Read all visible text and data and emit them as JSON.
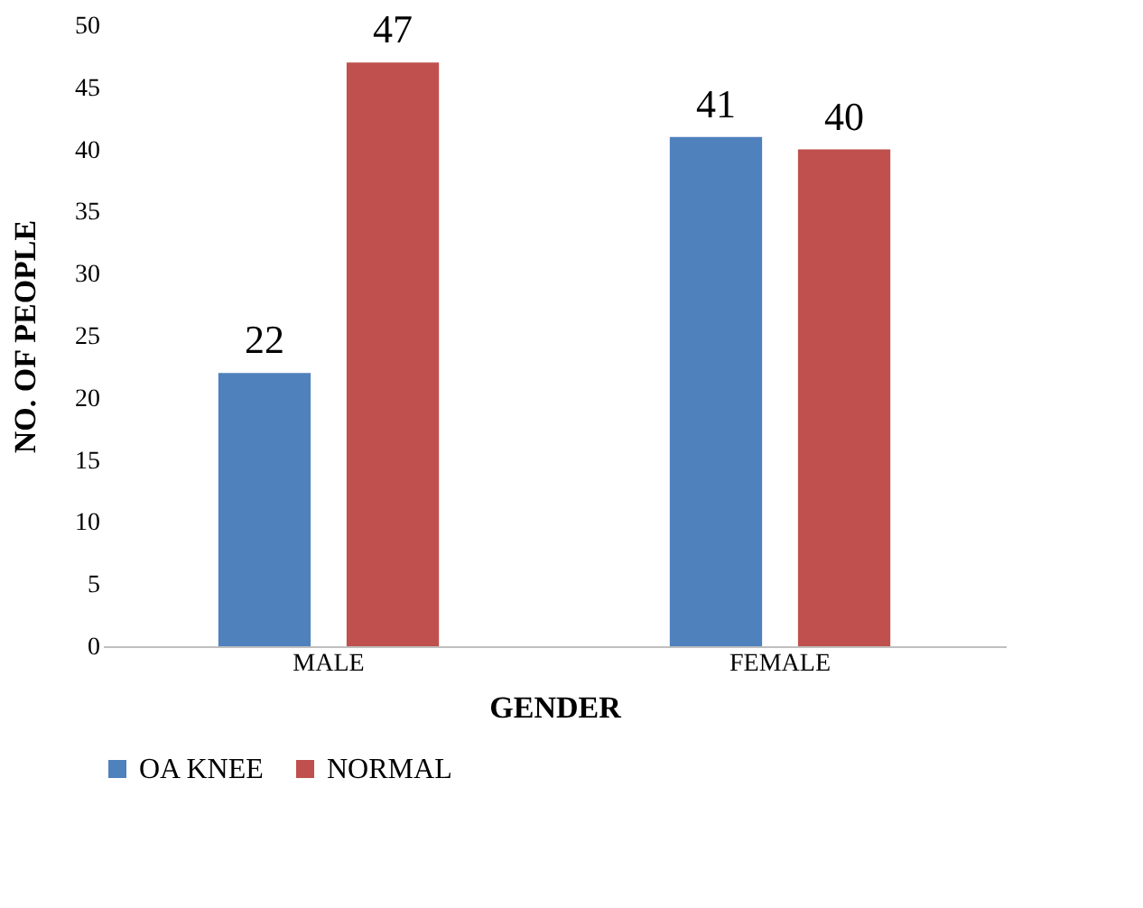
{
  "chart_data": {
    "type": "bar",
    "xlabel": "GENDER",
    "ylabel": "NO. OF PEOPLE",
    "categories": [
      "MALE",
      "FEMALE"
    ],
    "series": [
      {
        "name": "OA KNEE",
        "color": "#4f81bd",
        "values": [
          22,
          41
        ]
      },
      {
        "name": "NORMAL",
        "color": "#c0504d",
        "values": [
          47,
          40
        ]
      }
    ],
    "ylim": [
      0,
      50
    ],
    "yticks": [
      0,
      5,
      10,
      15,
      20,
      25,
      30,
      35,
      40,
      45,
      50
    ],
    "data_labels": true,
    "grid": false,
    "legend": "bottom"
  }
}
